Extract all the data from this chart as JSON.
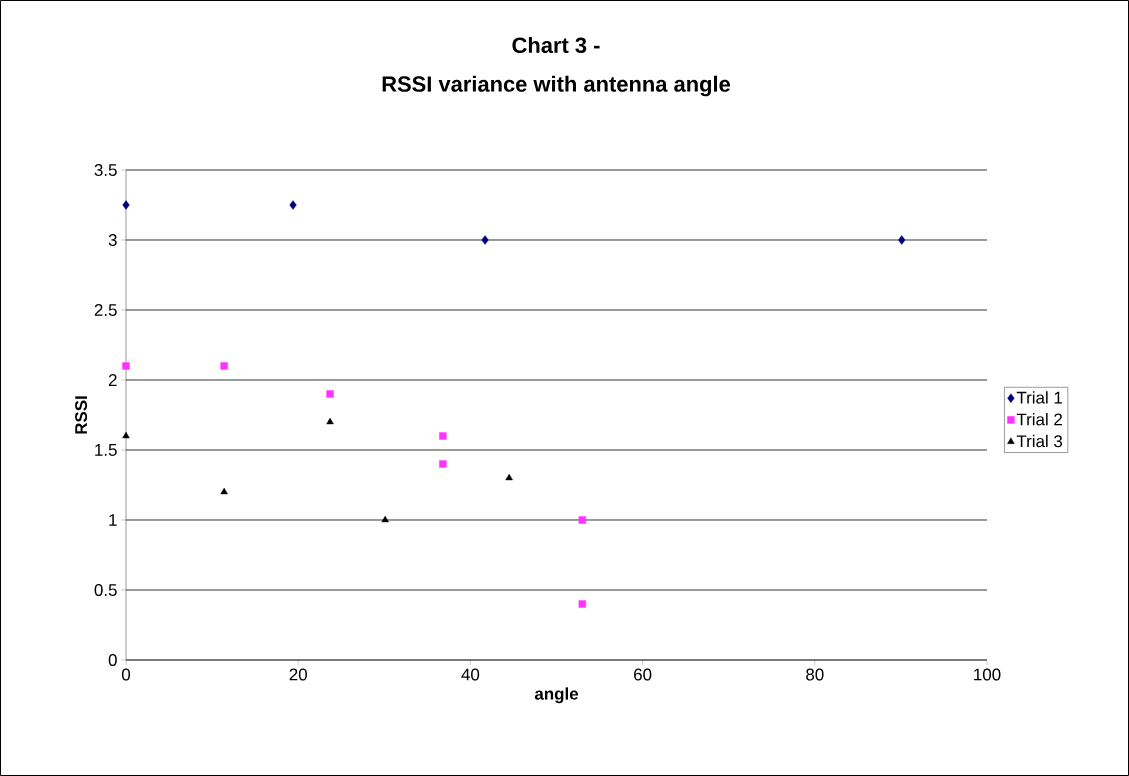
{
  "chart_data": {
    "type": "scatter",
    "title": "Chart 3 -",
    "subtitle": "RSSI variance with antenna angle",
    "xlabel": "angle",
    "ylabel": "RSSI",
    "xlim": [
      0,
      100
    ],
    "xticks": [
      0,
      20,
      40,
      60,
      80,
      100
    ],
    "ylim": [
      0,
      3.5
    ],
    "yticks": [
      0,
      0.5,
      1,
      1.5,
      2,
      2.5,
      3,
      3.5
    ],
    "grid": "y",
    "legend": "right",
    "series": [
      {
        "name": "Trial 1",
        "color": "#000080",
        "marker": "diamond",
        "x": [
          0,
          19.4,
          41.7,
          90.1
        ],
        "values": [
          3.25,
          3.25,
          3.0,
          3.0
        ]
      },
      {
        "name": "Trial 2",
        "color": "#ff33ff",
        "marker": "square",
        "x": [
          0,
          11.4,
          23.7,
          36.8,
          36.8,
          53.0,
          53.0
        ],
        "values": [
          2.1,
          2.1,
          1.9,
          1.6,
          1.4,
          1.0,
          0.4
        ]
      },
      {
        "name": "Trial 3",
        "color": "#000000",
        "marker": "triangle",
        "x": [
          0,
          11.4,
          23.7,
          30.1,
          44.5
        ],
        "values": [
          1.6,
          1.2,
          1.7,
          1.0,
          1.3
        ]
      }
    ]
  }
}
